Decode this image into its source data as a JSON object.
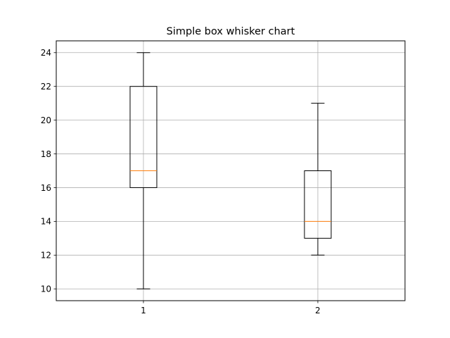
{
  "chart_data": {
    "type": "box",
    "title": "Simple box whisker chart",
    "xlabel": "",
    "ylabel": "",
    "categories": [
      "1",
      "2"
    ],
    "boxes": [
      {
        "category": "1",
        "whisker_low": 10,
        "q1": 16,
        "median": 17,
        "q3": 22,
        "whisker_high": 24
      },
      {
        "category": "2",
        "whisker_low": 12,
        "q1": 13,
        "median": 14,
        "q3": 17,
        "whisker_high": 21
      }
    ],
    "yticks": [
      10,
      12,
      14,
      16,
      18,
      20,
      22,
      24
    ],
    "ylim": [
      9.3,
      24.7
    ],
    "grid": true,
    "colors": {
      "box": "#000000",
      "median": "#ff7f0e",
      "grid": "#b0b0b0"
    }
  }
}
